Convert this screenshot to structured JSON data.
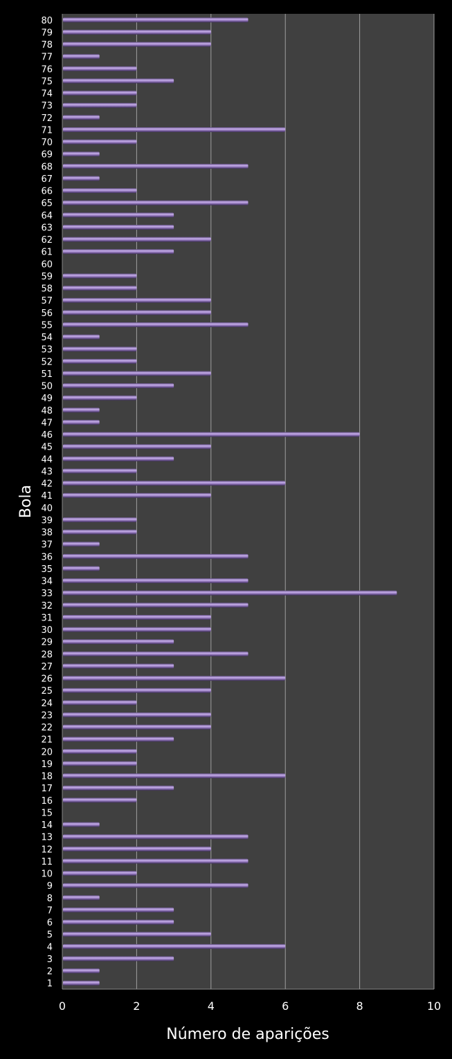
{
  "chart_data": {
    "type": "bar",
    "orientation": "horizontal",
    "xlabel": "Número de aparições",
    "ylabel": "Bola",
    "xlim": [
      0,
      10
    ],
    "xticks": [
      0,
      2,
      4,
      6,
      8,
      10
    ],
    "grid": true,
    "categories": [
      "1",
      "2",
      "3",
      "4",
      "5",
      "6",
      "7",
      "8",
      "9",
      "10",
      "11",
      "12",
      "13",
      "14",
      "15",
      "16",
      "17",
      "18",
      "19",
      "20",
      "21",
      "22",
      "23",
      "24",
      "25",
      "26",
      "27",
      "28",
      "29",
      "30",
      "31",
      "32",
      "33",
      "34",
      "35",
      "36",
      "37",
      "38",
      "39",
      "40",
      "41",
      "42",
      "43",
      "44",
      "45",
      "46",
      "47",
      "48",
      "49",
      "50",
      "51",
      "52",
      "53",
      "54",
      "55",
      "56",
      "57",
      "58",
      "59",
      "60",
      "61",
      "62",
      "63",
      "64",
      "65",
      "66",
      "67",
      "68",
      "69",
      "70",
      "71",
      "72",
      "73",
      "74",
      "75",
      "76",
      "77",
      "78",
      "79",
      "80"
    ],
    "values": [
      1,
      1,
      3,
      6,
      4,
      3,
      3,
      1,
      5,
      2,
      5,
      4,
      5,
      1,
      0,
      2,
      3,
      6,
      2,
      2,
      3,
      4,
      4,
      2,
      4,
      6,
      3,
      5,
      3,
      4,
      4,
      5,
      9,
      5,
      1,
      5,
      1,
      2,
      2,
      0,
      4,
      6,
      2,
      3,
      4,
      8,
      1,
      1,
      2,
      3,
      4,
      2,
      2,
      1,
      5,
      4,
      4,
      2,
      2,
      0,
      3,
      4,
      3,
      3,
      5,
      2,
      1,
      5,
      1,
      2,
      6,
      1,
      2,
      2,
      3,
      2,
      1,
      4,
      4,
      5
    ],
    "colors": {
      "background": "#000000",
      "plot_area": "#404040",
      "bar": "#9b7fc4",
      "grid": "#a0a0a0"
    }
  }
}
